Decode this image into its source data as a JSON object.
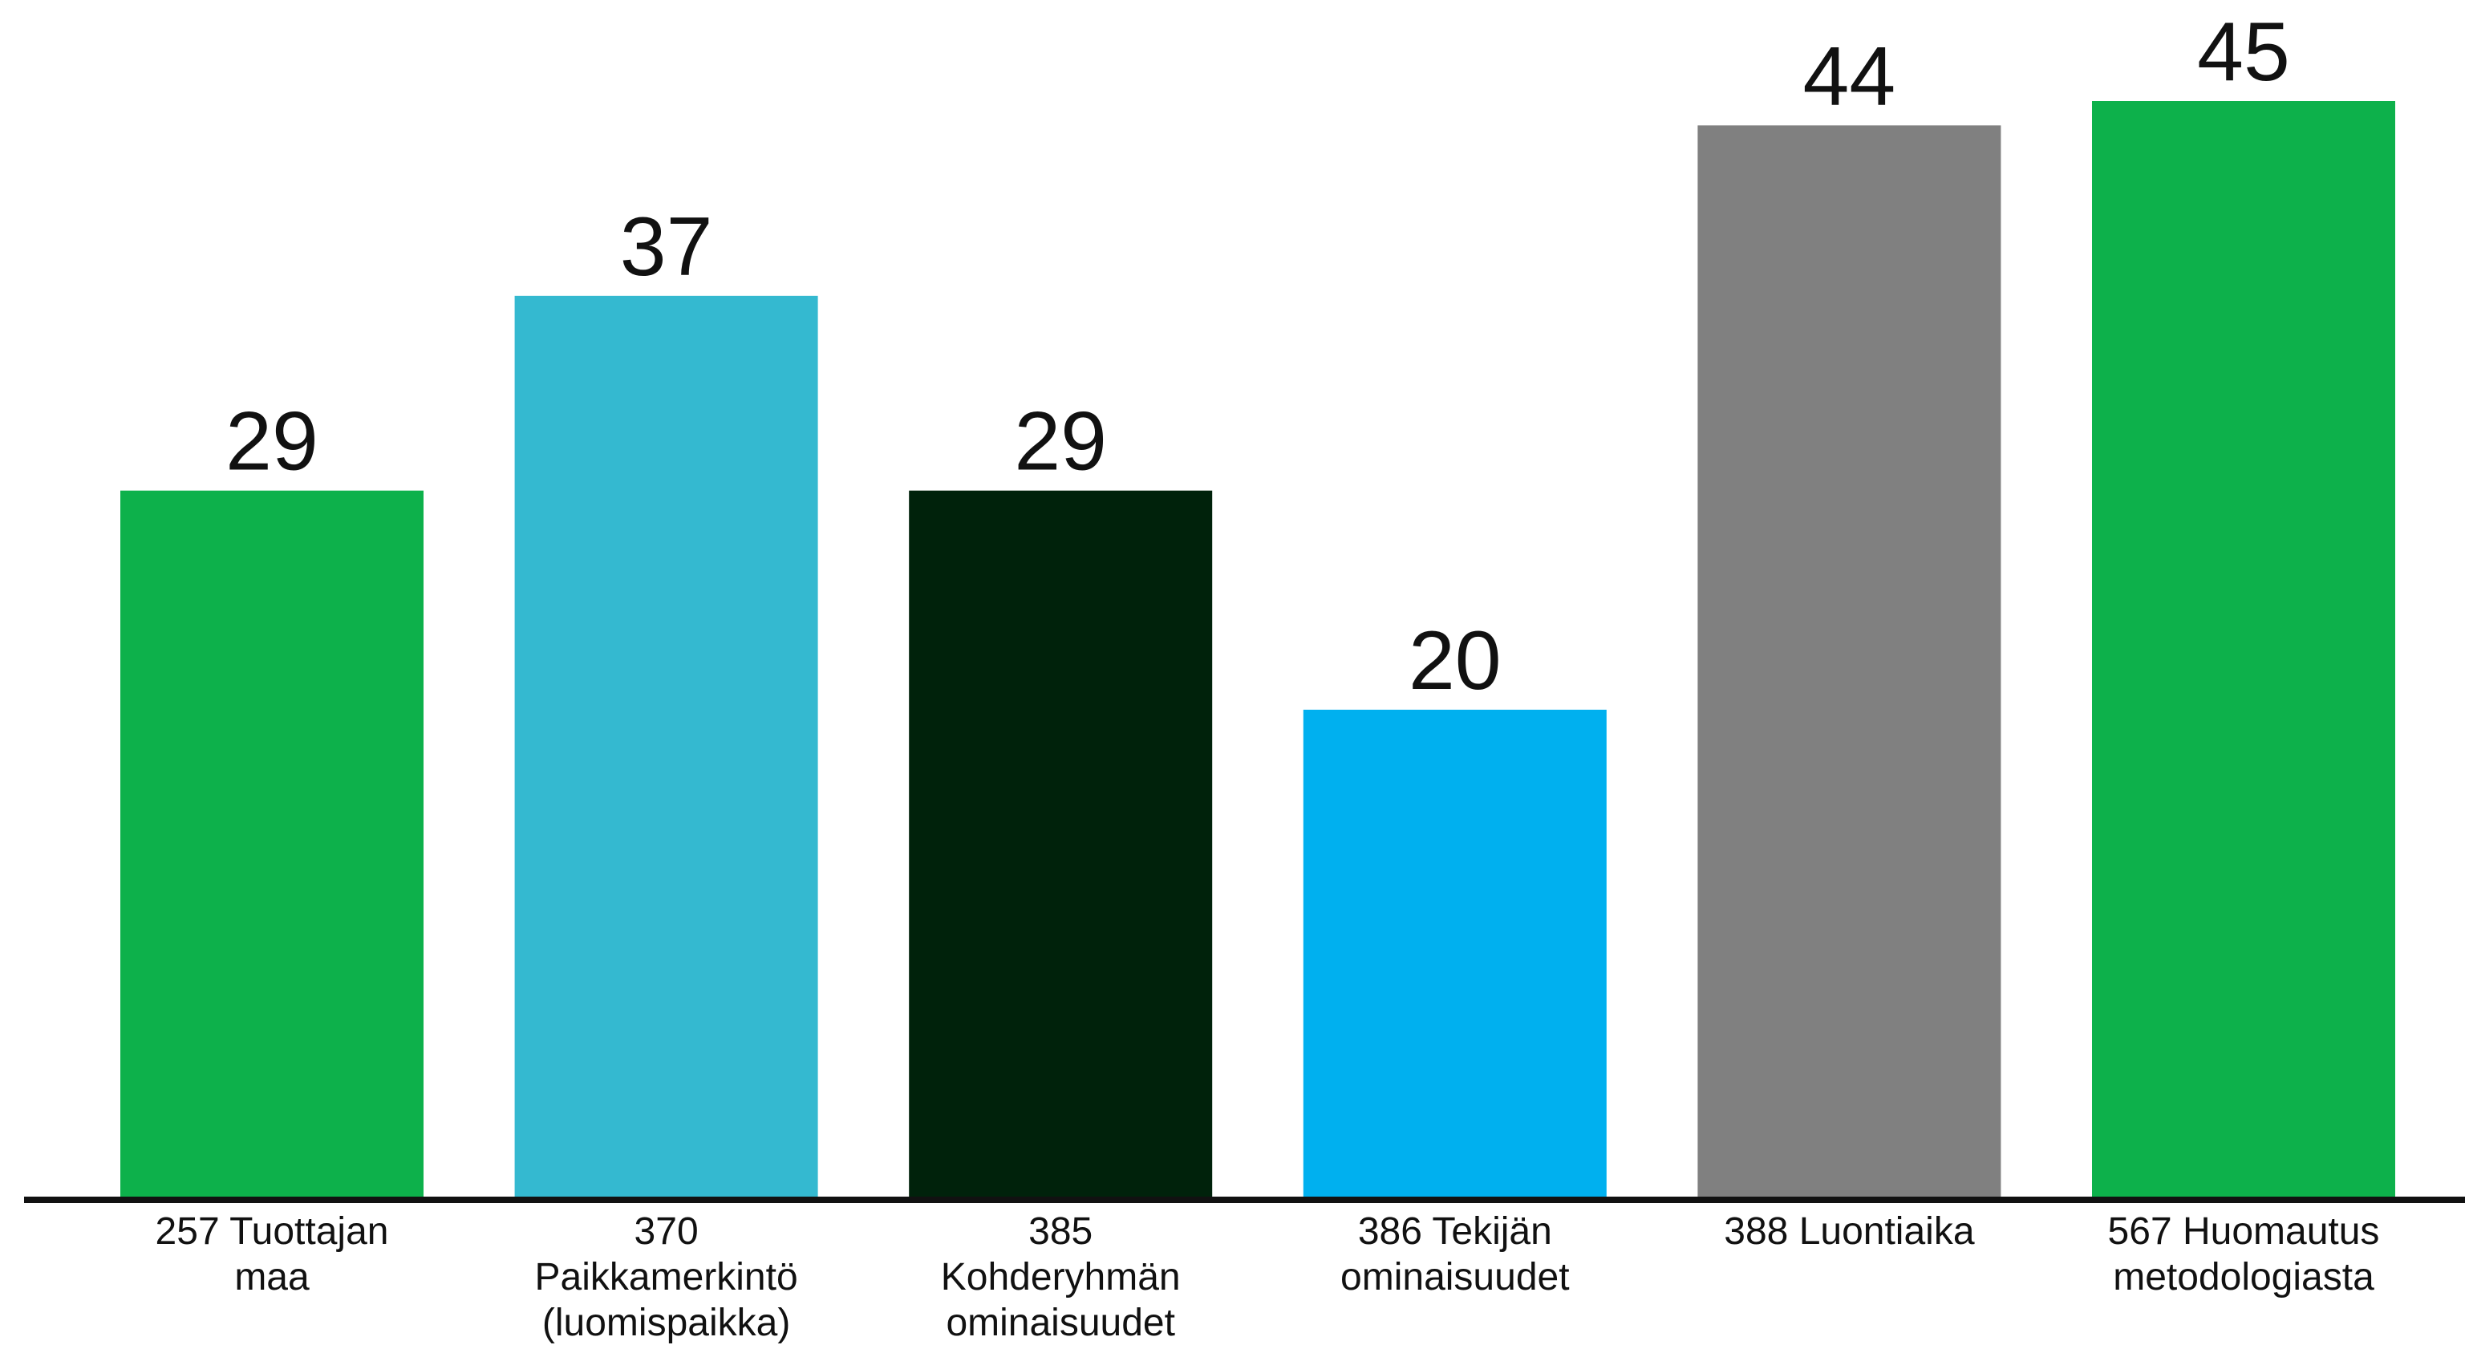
{
  "chart_data": {
    "type": "bar",
    "categories": [
      [
        "257 Tuottajan",
        "maa"
      ],
      [
        "370",
        "Paikkamerkintö",
        "(luomispaikka)"
      ],
      [
        "385",
        "Kohderyhmän",
        "ominaisuudet"
      ],
      [
        "386 Tekijän",
        "ominaisuudet"
      ],
      [
        "388 Luontiaika"
      ],
      [
        "567 Huomautus",
        "metodologiasta"
      ]
    ],
    "values": [
      29,
      37,
      29,
      20,
      44,
      45
    ],
    "value_labels": [
      "29",
      "37",
      "29",
      "20",
      "44",
      "45"
    ],
    "colors": [
      "#0db14b",
      "#34b9d0",
      "#00220b",
      "#00b0ef",
      "#808080",
      "#0db14b"
    ],
    "ylim": [
      0,
      45
    ],
    "grid": false,
    "legend": "none",
    "axis_color": "#111111"
  }
}
